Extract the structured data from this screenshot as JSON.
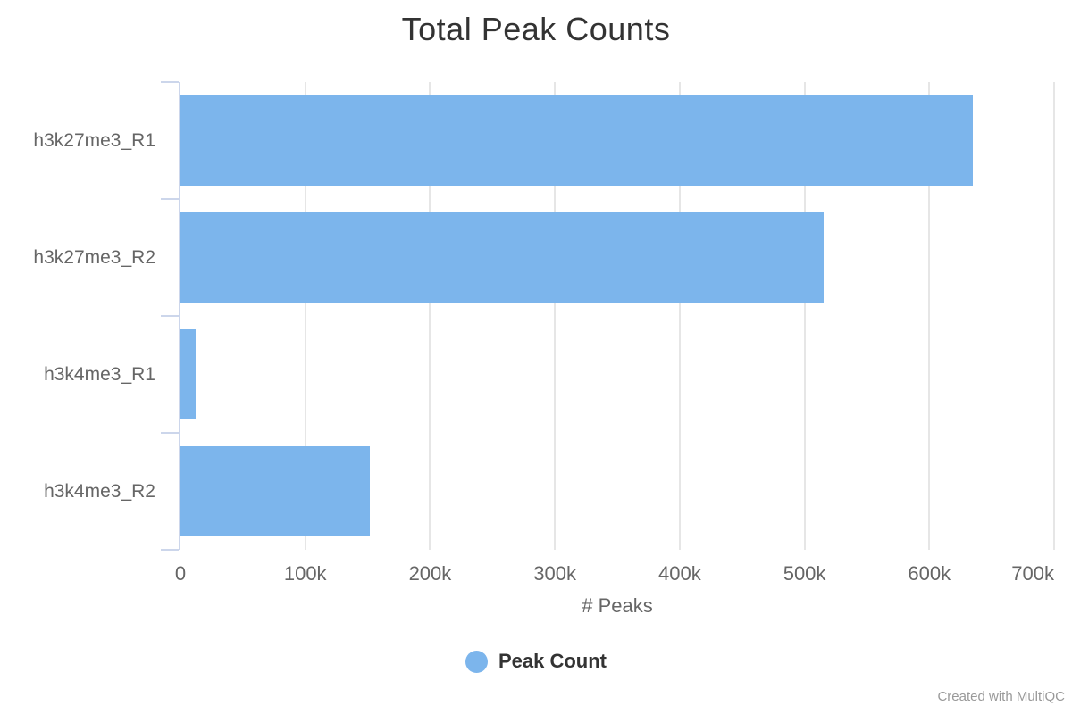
{
  "chart_data": {
    "type": "bar",
    "orientation": "horizontal",
    "title": "Total Peak Counts",
    "categories": [
      "h3k27me3_R1",
      "h3k27me3_R2",
      "h3k4me3_R1",
      "h3k4me3_R2"
    ],
    "series": [
      {
        "name": "Peak Count",
        "color": "#7cb5ec",
        "values": [
          635000,
          515000,
          12000,
          152000
        ]
      }
    ],
    "xlabel": "# Peaks",
    "ylabel": "",
    "xlim": [
      0,
      700000
    ],
    "xticks": [
      {
        "value": 0,
        "label": "0"
      },
      {
        "value": 100000,
        "label": "100k"
      },
      {
        "value": 200000,
        "label": "200k"
      },
      {
        "value": 300000,
        "label": "300k"
      },
      {
        "value": 400000,
        "label": "400k"
      },
      {
        "value": 500000,
        "label": "500k"
      },
      {
        "value": 600000,
        "label": "600k"
      },
      {
        "value": 700000,
        "label": "700k"
      }
    ],
    "grid": true,
    "legend_position": "bottom"
  },
  "legend": {
    "items": [
      {
        "label": "Peak Count",
        "color": "#7cb5ec"
      }
    ]
  },
  "credit": "Created with MultiQC",
  "colors": {
    "bar": "#7cb5ec",
    "gridline": "#e6e6e6",
    "axis_line": "#ccd6eb",
    "title_text": "#333333",
    "axis_label_text": "#666666",
    "legend_text": "#333333",
    "credit_text": "#999999",
    "background": "#ffffff"
  }
}
